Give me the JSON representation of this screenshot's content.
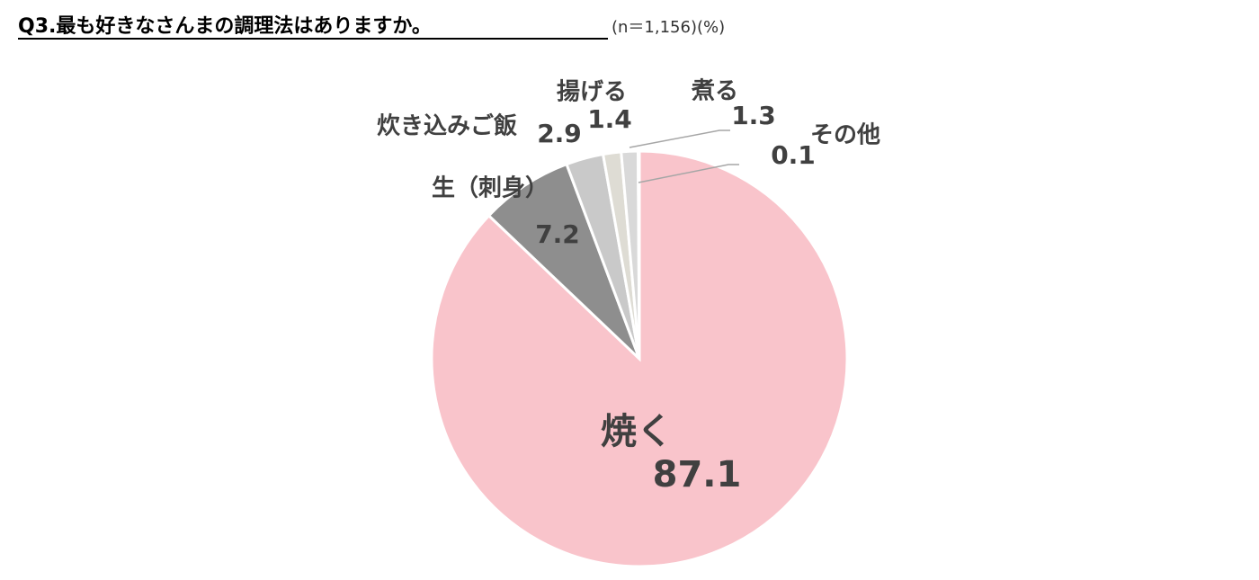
{
  "chart_data": {
    "type": "pie",
    "title": "Q3.最も好きなさんまの調理法はありますか。",
    "subtitle": "(n＝1,156)(%)",
    "categories": [
      "焼く",
      "生（刺身）",
      "炊き込みご飯",
      "揚げる",
      "煮る",
      "その他"
    ],
    "values": [
      87.1,
      7.2,
      2.9,
      1.4,
      1.3,
      0.1
    ],
    "colors": [
      "#f9c4cb",
      "#8e8e8e",
      "#c9c9c9",
      "#dedcd4",
      "#d9d9d9",
      "#e8e8e8"
    ]
  }
}
